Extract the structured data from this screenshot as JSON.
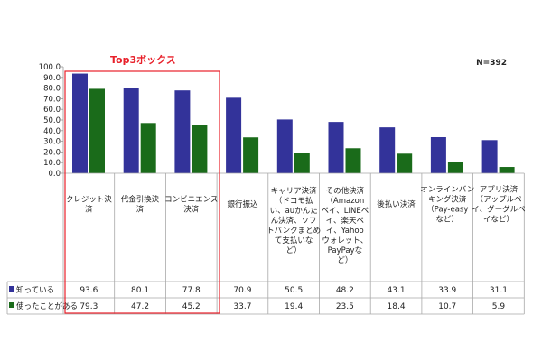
{
  "chart_data": {
    "type": "bar",
    "categories": [
      [
        "クレジット決",
        "済"
      ],
      [
        "代金引換決",
        "済"
      ],
      [
        "コンビニエンス",
        "決済"
      ],
      [
        "銀行振込"
      ],
      [
        "キャリア決済",
        "（ドコモ払",
        "い、auかんた",
        "ん決済、ソフ",
        "トバンクまとめ",
        "て支払いな",
        "ど）"
      ],
      [
        "その他決済",
        "（Amazon",
        "ペイ、LINEペ",
        "イ、楽天ペ",
        "イ、Yahoo",
        "ウォレット、",
        "PayPayな",
        "ど）"
      ],
      [
        "後払い決済"
      ],
      [
        "オンラインバン",
        "キング決済",
        "（Pay-easy",
        "など）"
      ],
      [
        "アプリ決済",
        "（アップルペ",
        "イ、グーグルペ",
        "イなど）"
      ]
    ],
    "series": [
      {
        "name": "知っている",
        "color": "#33339a",
        "values": [
          93.6,
          80.1,
          77.8,
          70.9,
          50.5,
          48.2,
          43.1,
          33.9,
          31.1
        ],
        "labels": [
          "93.6",
          "80.1",
          "77.8",
          "70.9",
          "50.5",
          "48.2",
          "43.1",
          "33.9",
          "31.1"
        ]
      },
      {
        "name": "使ったことがある",
        "color": "#1a6b1a",
        "values": [
          79.3,
          47.2,
          45.2,
          33.7,
          19.4,
          23.5,
          18.4,
          10.7,
          5.9
        ],
        "labels": [
          "79.3",
          "47.2",
          "45.2",
          "33.7",
          "19.4",
          "23.5",
          "18.4",
          "10.7",
          "5.9"
        ]
      }
    ],
    "ylim": [
      0,
      100
    ],
    "yticks": [
      "100.0",
      "90.0",
      "80.0",
      "70.0",
      "60.0",
      "50.0",
      "40.0",
      "30.0",
      "20.0",
      "10.0",
      "0.0"
    ],
    "sample_note": "N=392",
    "highlight_label": "Top3ボックス",
    "highlight_color": "#e8202a",
    "grid": false,
    "legend": "table-left"
  }
}
